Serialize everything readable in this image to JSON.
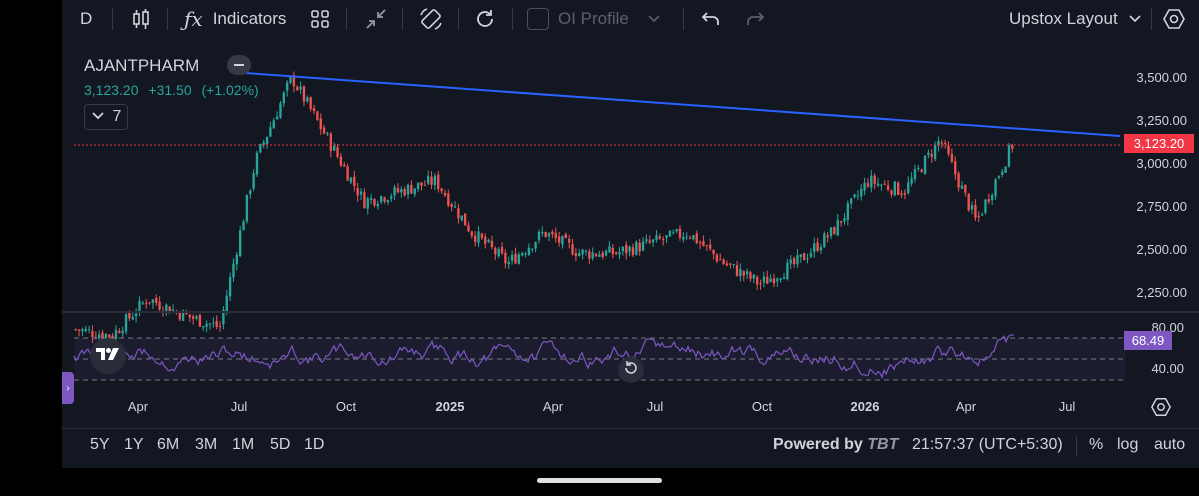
{
  "toolbar": {
    "interval": "D",
    "indicators_label": "Indicators",
    "oi_profile_label": "OI Profile",
    "layout_label": "Upstox Layout"
  },
  "legend": {
    "symbol": "AJANTPHARM",
    "last": "3,123.20",
    "change": "+31.50",
    "change_pct": "(+1.02%)",
    "indicator_count": "7"
  },
  "price_axis": [
    "3,500.00",
    "3,250.00",
    "3,000.00",
    "2,750.00",
    "2,500.00",
    "2,250.00"
  ],
  "price_tag": "3,123.20",
  "rsi_axis": [
    "80.00",
    "40.00"
  ],
  "rsi_tag": "68.49",
  "time_axis": [
    {
      "label": "Apr",
      "bold": false
    },
    {
      "label": "Jul",
      "bold": false
    },
    {
      "label": "Oct",
      "bold": false
    },
    {
      "label": "2025",
      "bold": true
    },
    {
      "label": "Apr",
      "bold": false
    },
    {
      "label": "Jul",
      "bold": false
    },
    {
      "label": "Oct",
      "bold": false
    },
    {
      "label": "2026",
      "bold": true
    },
    {
      "label": "Apr",
      "bold": false
    },
    {
      "label": "Jul",
      "bold": false
    }
  ],
  "ranges": [
    "5Y",
    "1Y",
    "6M",
    "3M",
    "1M",
    "5D",
    "1D"
  ],
  "powered_by": "Powered by",
  "powered_brand": "TBT",
  "clock": "21:57:37 (UTC+5:30)",
  "scale_options": [
    "%",
    "log",
    "auto"
  ],
  "colors": {
    "up": "#26a69a",
    "down": "#ef5350",
    "trendline": "#2962ff",
    "rsi": "#7e57c2",
    "price_tag": "#f23645",
    "background": "#131722"
  },
  "chart_data": {
    "type": "candlestick",
    "symbol": "AJANTPHARM",
    "price_range": [
      2150,
      3600
    ],
    "rsi_levels": [
      70,
      50,
      30
    ],
    "approx_close_path": [
      [
        "Mar",
        2230
      ],
      [
        "Apr",
        2200
      ],
      [
        "May",
        2380
      ],
      [
        "Jun",
        2300
      ],
      [
        "Jul",
        2240
      ],
      [
        "Aug",
        3050
      ],
      [
        "Sep",
        3450
      ],
      [
        "Oct",
        3150
      ],
      [
        "Nov",
        2850
      ],
      [
        "Dec",
        2900
      ],
      [
        "2025",
        2950
      ],
      [
        "Feb",
        2700
      ],
      [
        "Mar",
        2550
      ],
      [
        "Apr",
        2700
      ],
      [
        "May",
        2600
      ],
      [
        "Jun",
        2600
      ],
      [
        "Jul",
        2650
      ],
      [
        "Aug",
        2700
      ],
      [
        "Sep",
        2550
      ],
      [
        "Oct",
        2450
      ],
      [
        "Nov",
        2550
      ],
      [
        "Dec",
        2700
      ],
      [
        "2026",
        2950
      ],
      [
        "Feb",
        2900
      ],
      [
        "Mar",
        3150
      ],
      [
        "Apr",
        2750
      ],
      [
        "May",
        3123.2
      ]
    ]
  }
}
